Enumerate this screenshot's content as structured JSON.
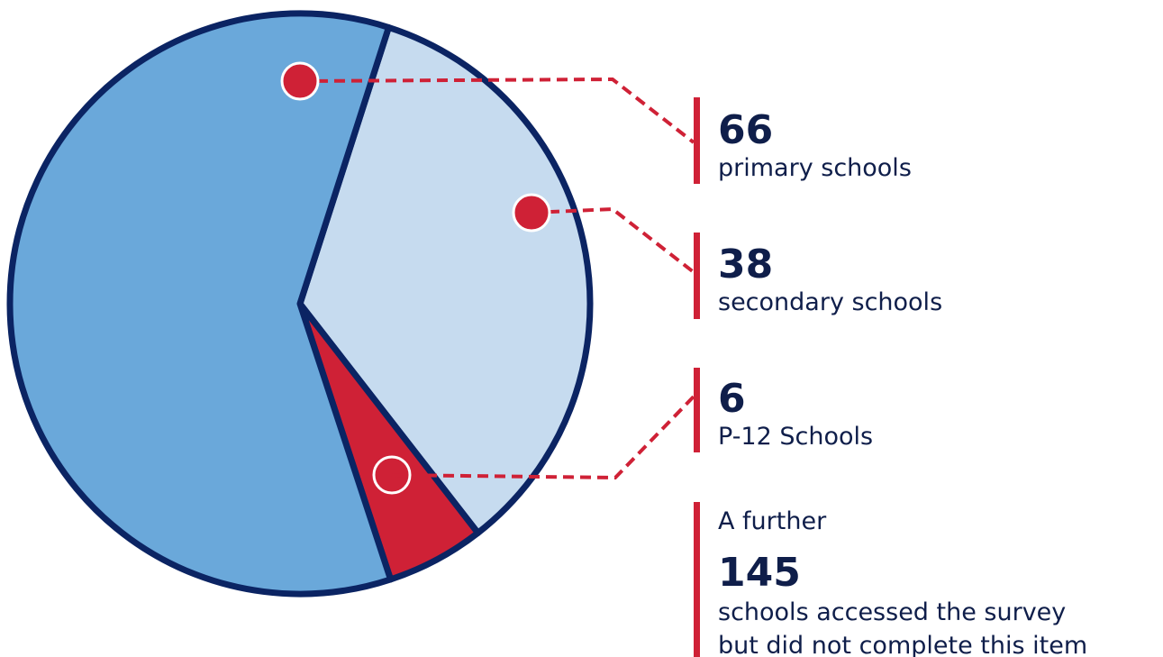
{
  "chart_data": {
    "type": "pie",
    "categories": [
      "primary schools",
      "secondary schools",
      "P-12 Schools"
    ],
    "values": [
      66,
      38,
      6
    ],
    "colors": [
      "#6aa8da",
      "#c6dbef",
      "#cf2136"
    ],
    "outline": "#0b2463",
    "note": {
      "prefix": "A further",
      "value": 145,
      "lines": [
        "schools accessed the survey",
        "but did not complete this item"
      ]
    }
  }
}
